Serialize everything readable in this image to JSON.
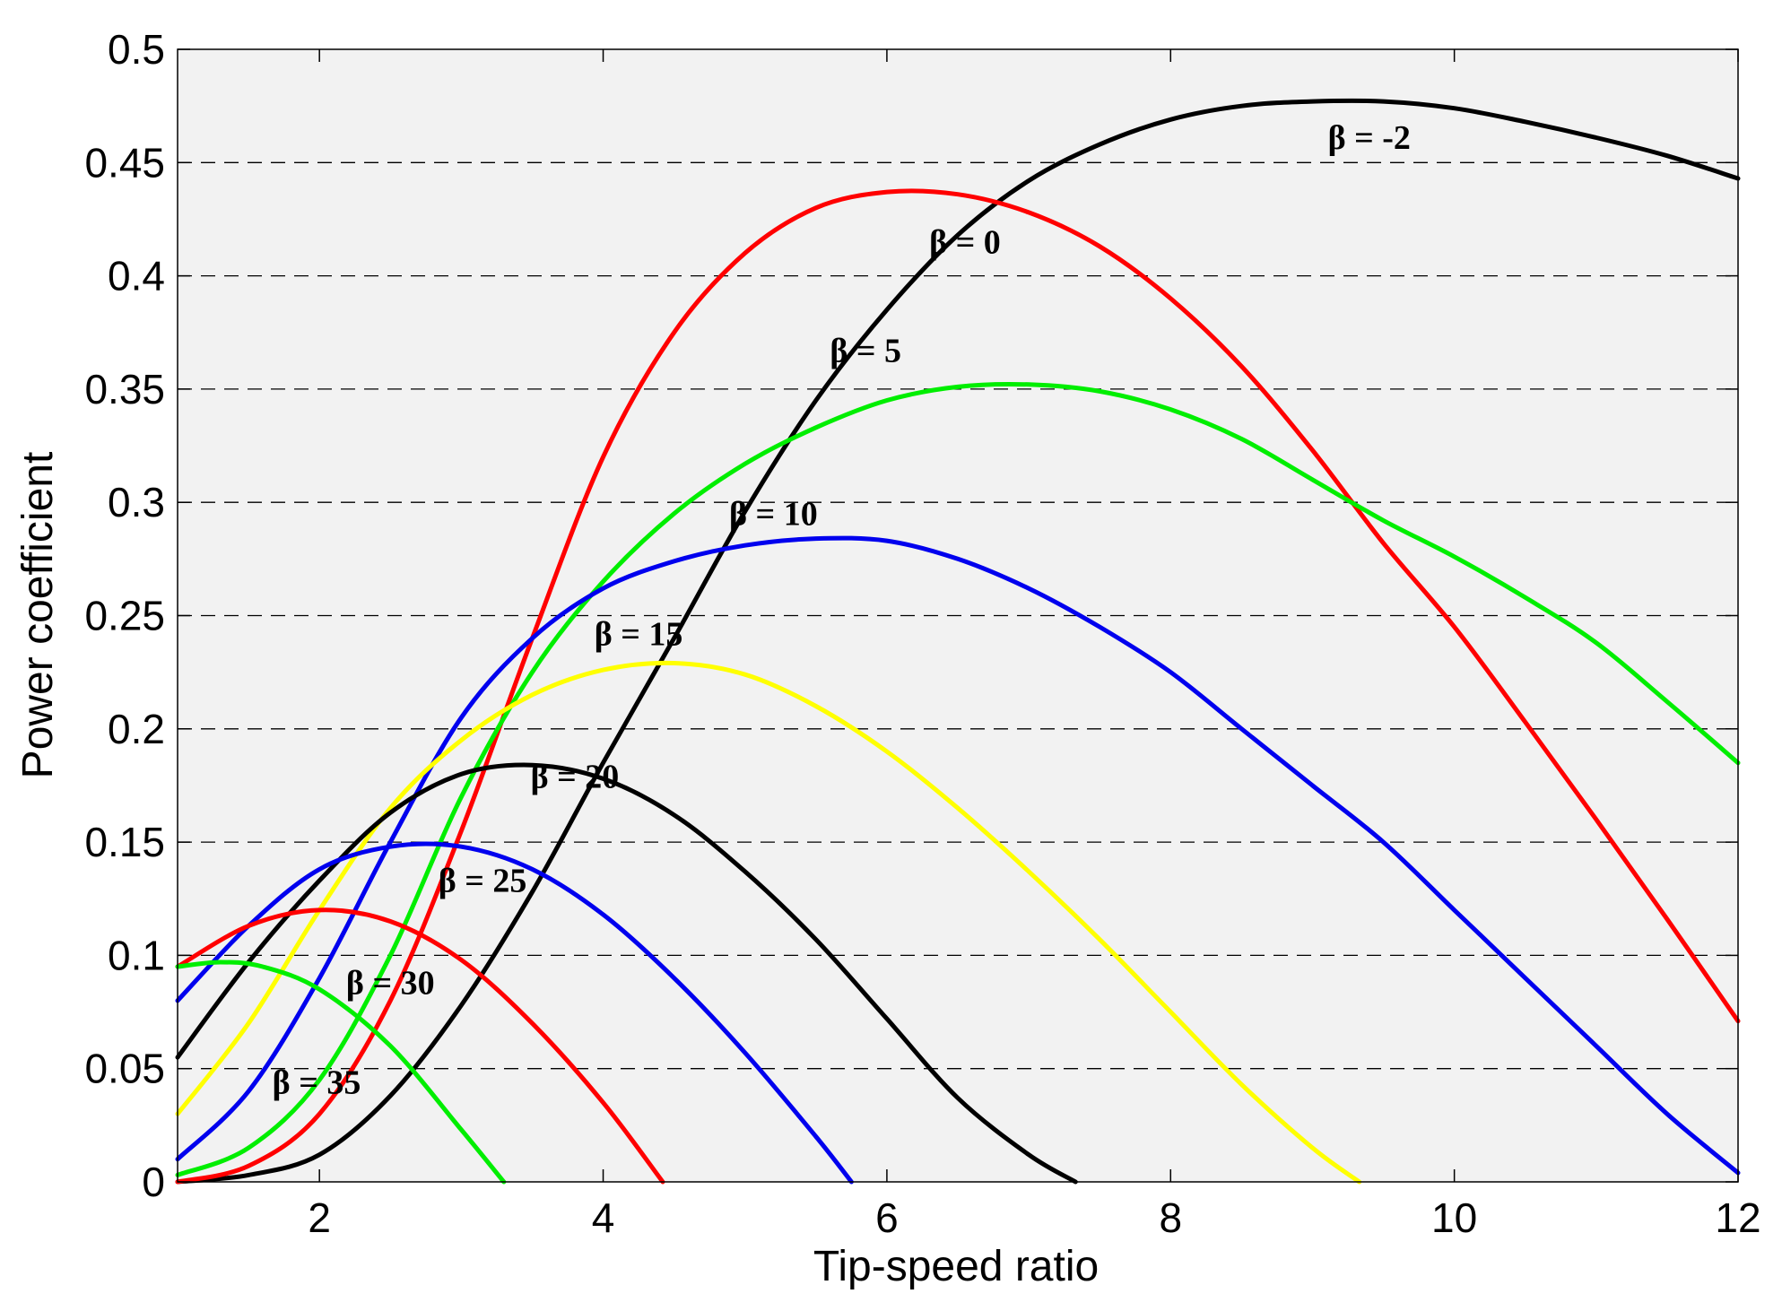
{
  "chart_data": {
    "type": "line",
    "title": "",
    "xlabel": "Tip-speed ratio",
    "ylabel": "Power coefficient",
    "xlim": [
      1,
      12
    ],
    "ylim": [
      0,
      0.5
    ],
    "x_ticks": [
      2,
      4,
      6,
      8,
      10,
      12
    ],
    "x_tick_labels": [
      "2",
      "4",
      "6",
      "8",
      "10",
      "12"
    ],
    "y_ticks": [
      0,
      0.05,
      0.1,
      0.15,
      0.2,
      0.25,
      0.3,
      0.35,
      0.4,
      0.45,
      0.5
    ],
    "y_tick_labels": [
      "0",
      "0.05",
      "0.1",
      "0.15",
      "0.2",
      "0.25",
      "0.3",
      "0.35",
      "0.4",
      "0.45",
      "0.5"
    ],
    "grid": "horizontal dashed",
    "series": [
      {
        "name": "β = -2",
        "beta": -2,
        "color": "#000000",
        "label_at": [
          9.4,
          0.456
        ],
        "x": [
          1,
          1.5,
          2,
          2.5,
          3,
          3.5,
          4,
          4.5,
          5,
          5.5,
          6,
          6.5,
          7,
          7.5,
          8,
          8.5,
          9,
          9.5,
          10,
          10.5,
          11,
          11.5,
          12
        ],
        "y": [
          0.0,
          0.003,
          0.012,
          0.038,
          0.078,
          0.128,
          0.185,
          0.24,
          0.296,
          0.345,
          0.385,
          0.418,
          0.442,
          0.458,
          0.469,
          0.475,
          0.477,
          0.477,
          0.474,
          0.468,
          0.461,
          0.453,
          0.443
        ]
      },
      {
        "name": "β = 0",
        "beta": 0,
        "color": "#ff0000",
        "label_at": [
          6.55,
          0.41
        ],
        "x": [
          1,
          1.5,
          2,
          2.5,
          3,
          3.5,
          4,
          4.5,
          5,
          5.5,
          6,
          6.5,
          7,
          7.5,
          8,
          8.5,
          9,
          9.5,
          10,
          10.5,
          11,
          11.5,
          12
        ],
        "y": [
          0.0,
          0.007,
          0.03,
          0.08,
          0.155,
          0.24,
          0.32,
          0.375,
          0.41,
          0.43,
          0.437,
          0.436,
          0.428,
          0.413,
          0.39,
          0.36,
          0.323,
          0.282,
          0.245,
          0.203,
          0.16,
          0.116,
          0.071
        ]
      },
      {
        "name": "β = 5",
        "beta": 5,
        "color": "#00ee00",
        "label_at": [
          5.85,
          0.362
        ],
        "x": [
          1,
          1.5,
          2,
          2.5,
          3,
          3.5,
          4,
          4.5,
          5,
          5.5,
          6,
          6.5,
          7,
          7.5,
          8,
          8.5,
          9,
          9.5,
          10,
          10.5,
          11,
          11.5,
          12
        ],
        "y": [
          0.003,
          0.015,
          0.045,
          0.1,
          0.17,
          0.225,
          0.265,
          0.295,
          0.317,
          0.333,
          0.345,
          0.351,
          0.352,
          0.349,
          0.341,
          0.328,
          0.31,
          0.292,
          0.276,
          0.258,
          0.238,
          0.212,
          0.185
        ]
      },
      {
        "name": "β = 10",
        "beta": 10,
        "color": "#0000ee",
        "label_at": [
          5.2,
          0.29
        ],
        "x": [
          1,
          1.5,
          2,
          2.5,
          3,
          3.5,
          4,
          4.5,
          5,
          5.5,
          6,
          6.5,
          7,
          7.5,
          8,
          8.5,
          9,
          9.5,
          10,
          10.5,
          11,
          11.5,
          12
        ],
        "y": [
          0.01,
          0.04,
          0.09,
          0.15,
          0.205,
          0.24,
          0.262,
          0.274,
          0.281,
          0.284,
          0.283,
          0.275,
          0.262,
          0.245,
          0.225,
          0.2,
          0.175,
          0.15,
          0.12,
          0.09,
          0.06,
          0.03,
          0.004
        ]
      },
      {
        "name": "β = 15",
        "beta": 15,
        "color": "#ffff00",
        "label_at": [
          4.25,
          0.237
        ],
        "x": [
          1,
          1.5,
          2,
          2.5,
          3,
          3.5,
          4,
          4.5,
          5,
          5.5,
          6,
          6.5,
          7,
          7.5,
          8,
          8.5,
          9,
          9.33
        ],
        "y": [
          0.03,
          0.07,
          0.12,
          0.165,
          0.195,
          0.215,
          0.226,
          0.229,
          0.224,
          0.21,
          0.19,
          0.165,
          0.137,
          0.107,
          0.075,
          0.043,
          0.015,
          0.0
        ]
      },
      {
        "name": "β = 20",
        "beta": 20,
        "color": "#000000",
        "label_at": [
          3.8,
          0.174
        ],
        "x": [
          1,
          1.5,
          2,
          2.5,
          3,
          3.5,
          4,
          4.5,
          5,
          5.5,
          6,
          6.5,
          7,
          7.33
        ],
        "y": [
          0.055,
          0.097,
          0.133,
          0.163,
          0.18,
          0.184,
          0.178,
          0.162,
          0.137,
          0.107,
          0.072,
          0.037,
          0.012,
          0.0
        ]
      },
      {
        "name": "β = 25",
        "beta": 25,
        "color": "#0000ee",
        "label_at": [
          3.15,
          0.128
        ],
        "x": [
          1,
          1.5,
          2,
          2.5,
          3,
          3.5,
          4,
          4.5,
          5,
          5.5,
          5.75
        ],
        "y": [
          0.08,
          0.113,
          0.138,
          0.148,
          0.148,
          0.138,
          0.118,
          0.09,
          0.057,
          0.02,
          0.0
        ]
      },
      {
        "name": "β = 30",
        "beta": 30,
        "color": "#ff0000",
        "label_at": [
          2.5,
          0.083
        ],
        "x": [
          1,
          1.5,
          2,
          2.5,
          3,
          3.5,
          4,
          4.42
        ],
        "y": [
          0.095,
          0.113,
          0.12,
          0.115,
          0.098,
          0.07,
          0.035,
          0.0
        ]
      },
      {
        "name": "β = 35",
        "beta": 35,
        "color": "#00ee00",
        "label_at": [
          1.98,
          0.039
        ],
        "x": [
          1,
          1.3,
          1.6,
          2,
          2.5,
          3,
          3.3
        ],
        "y": [
          0.095,
          0.097,
          0.095,
          0.085,
          0.06,
          0.023,
          0.0
        ]
      }
    ]
  }
}
